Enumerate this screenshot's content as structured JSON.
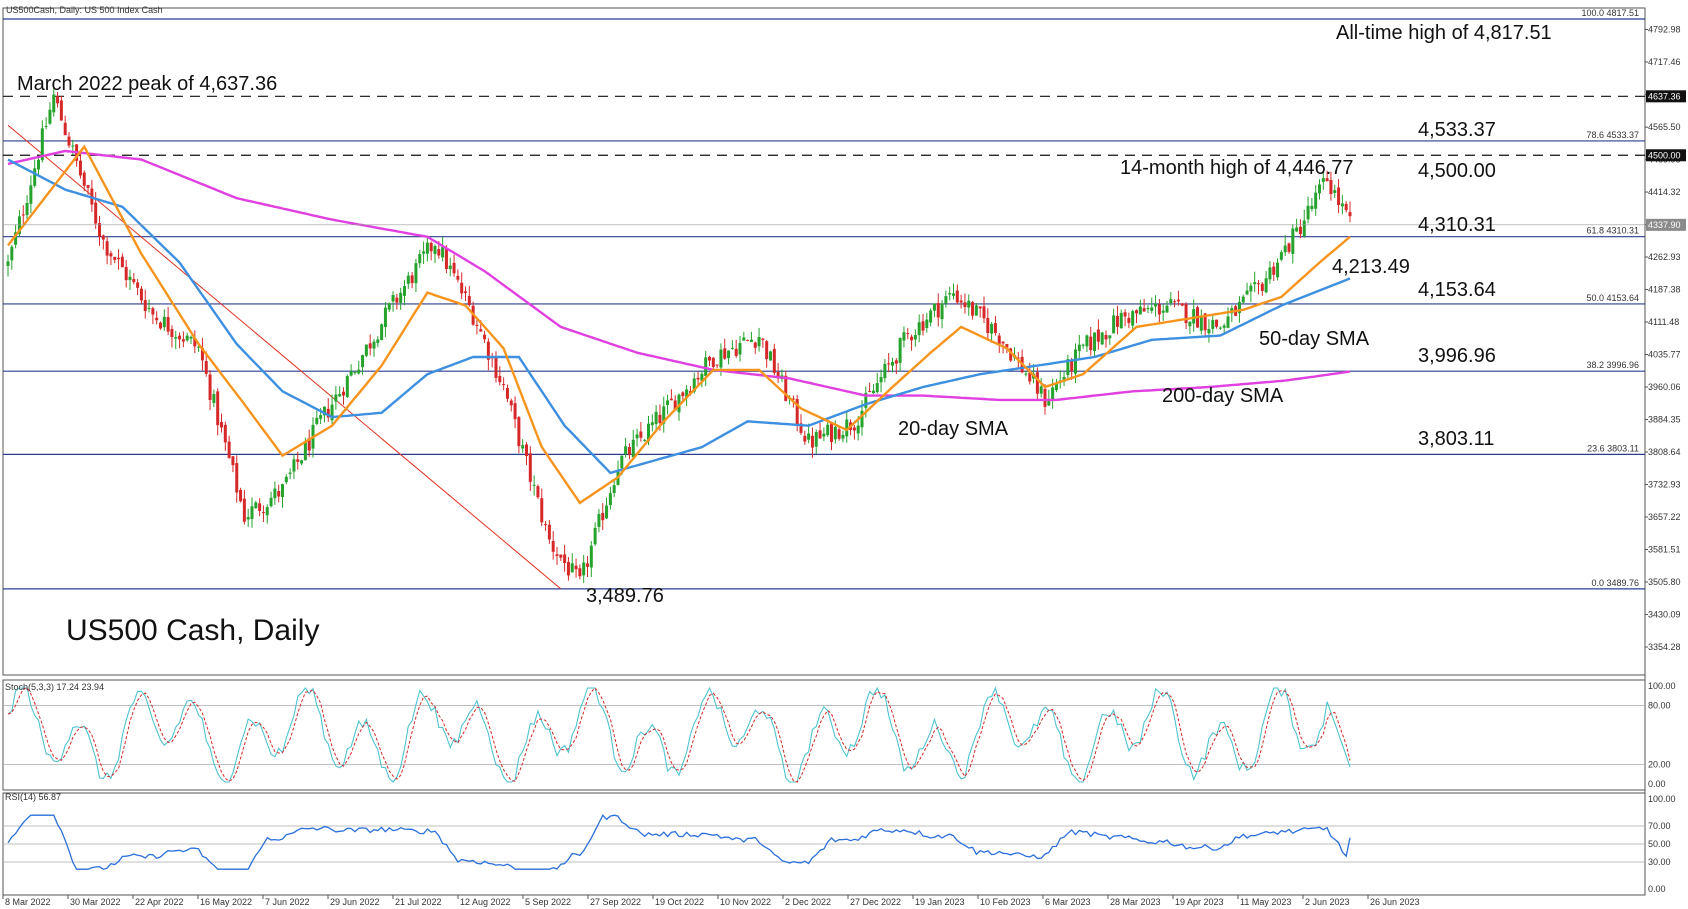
{
  "header": {
    "symbol_line": "US500Cash, Daily:  US 500 Index Cash"
  },
  "chart_data": {
    "type": "candlestick",
    "title": "US500 Cash, Daily",
    "price_axis": {
      "ylim": [
        3354.28,
        4817.51
      ],
      "ticks": [
        4792.98,
        4717.46,
        4641.94,
        4565.5,
        4489.98,
        4414.32,
        4338.4,
        4262.93,
        4187.38,
        4111.48,
        4035.77,
        3960.06,
        3884.35,
        3808.64,
        3732.93,
        3657.22,
        3581.51,
        3505.8,
        3430.09,
        3354.28
      ],
      "tick_labels": [
        "4792.98",
        "4717.46",
        "4641.94",
        "4565.50",
        "4489.98",
        "4414.32",
        "4338.40",
        "4262.93",
        "4187.38",
        "4111.48",
        "4035.77",
        "3960.06",
        "3884.35",
        "3808.64",
        "3732.93",
        "3657.22",
        "3581.51",
        "3505.80",
        "3430.09",
        "3354.28"
      ],
      "current_price": 4337.9,
      "current_price_label": "4337.90",
      "highlight_labels": [
        {
          "value": 4637.36,
          "label": "4637.36"
        },
        {
          "value": 4500.0,
          "label": "4500.00"
        }
      ]
    },
    "x_axis": {
      "labels": [
        "8 Mar 2022",
        "30 Mar 2022",
        "22 Apr 2022",
        "16 May 2022",
        "7 Jun 2022",
        "29 Jun 2022",
        "21 Jul 2022",
        "12 Aug 2022",
        "5 Sep 2022",
        "27 Sep 2022",
        "19 Oct 2022",
        "10 Nov 2022",
        "2 Dec 2022",
        "27 Dec 2022",
        "19 Jan 2023",
        "10 Feb 2023",
        "6 Mar 2023",
        "28 Mar 2023",
        "19 Apr 2023",
        "11 May 2023",
        "2 Jun 2023",
        "26 Jun 2023"
      ]
    },
    "fibonacci_levels": [
      {
        "ratio": "100.0",
        "value": 4817.51,
        "label": "100.0  4817.51"
      },
      {
        "ratio": "78.6",
        "value": 4533.37,
        "label": "78.6  4533.37"
      },
      {
        "ratio": "61.8",
        "value": 4310.31,
        "label": "61.8  4310.31"
      },
      {
        "ratio": "50.0",
        "value": 4153.64,
        "label": "50.0  4153.64"
      },
      {
        "ratio": "38.2",
        "value": 3996.96,
        "label": "38.2  3996.96"
      },
      {
        "ratio": "23.6",
        "value": 3803.11,
        "label": "23.6  3803.11"
      },
      {
        "ratio": "0.0",
        "value": 3489.76,
        "label": "0.0  3489.76"
      }
    ],
    "dashed_levels": [
      4637.36,
      4500.0
    ],
    "key_points": [
      [
        0,
        4245
      ],
      [
        12,
        4637
      ],
      [
        25,
        4300
      ],
      [
        38,
        4130
      ],
      [
        50,
        4050
      ],
      [
        62,
        3660
      ],
      [
        72,
        3720
      ],
      [
        82,
        3880
      ],
      [
        92,
        4020
      ],
      [
        100,
        4140
      ],
      [
        112,
        4300
      ],
      [
        122,
        4130
      ],
      [
        130,
        3960
      ],
      [
        142,
        3600
      ],
      [
        150,
        3500
      ],
      [
        160,
        3780
      ],
      [
        172,
        3900
      ],
      [
        185,
        4030
      ],
      [
        197,
        4080
      ],
      [
        210,
        3830
      ],
      [
        222,
        3880
      ],
      [
        236,
        4080
      ],
      [
        248,
        4180
      ],
      [
        260,
        4080
      ],
      [
        272,
        3930
      ],
      [
        282,
        4050
      ],
      [
        292,
        4120
      ],
      [
        304,
        4150
      ],
      [
        318,
        4100
      ],
      [
        328,
        4190
      ],
      [
        338,
        4320
      ],
      [
        346,
        4446
      ],
      [
        352,
        4338
      ]
    ],
    "sma_20": [
      [
        0,
        4290
      ],
      [
        20,
        4520
      ],
      [
        35,
        4270
      ],
      [
        50,
        4060
      ],
      [
        62,
        3920
      ],
      [
        72,
        3800
      ],
      [
        85,
        3870
      ],
      [
        98,
        4010
      ],
      [
        110,
        4180
      ],
      [
        120,
        4150
      ],
      [
        130,
        4050
      ],
      [
        140,
        3820
      ],
      [
        150,
        3690
      ],
      [
        160,
        3750
      ],
      [
        172,
        3880
      ],
      [
        185,
        4000
      ],
      [
        197,
        4000
      ],
      [
        208,
        3910
      ],
      [
        220,
        3860
      ],
      [
        232,
        3960
      ],
      [
        242,
        4040
      ],
      [
        250,
        4100
      ],
      [
        262,
        4050
      ],
      [
        272,
        3960
      ],
      [
        282,
        3990
      ],
      [
        296,
        4100
      ],
      [
        310,
        4120
      ],
      [
        324,
        4140
      ],
      [
        334,
        4170
      ],
      [
        344,
        4250
      ],
      [
        352,
        4310
      ]
    ],
    "sma_50": [
      [
        0,
        4490
      ],
      [
        15,
        4420
      ],
      [
        30,
        4380
      ],
      [
        45,
        4250
      ],
      [
        60,
        4060
      ],
      [
        72,
        3950
      ],
      [
        85,
        3890
      ],
      [
        98,
        3900
      ],
      [
        110,
        3990
      ],
      [
        122,
        4030
      ],
      [
        134,
        4030
      ],
      [
        146,
        3870
      ],
      [
        158,
        3760
      ],
      [
        170,
        3790
      ],
      [
        182,
        3820
      ],
      [
        194,
        3880
      ],
      [
        210,
        3870
      ],
      [
        225,
        3920
      ],
      [
        240,
        3960
      ],
      [
        255,
        3990
      ],
      [
        270,
        4010
      ],
      [
        285,
        4030
      ],
      [
        300,
        4070
      ],
      [
        318,
        4080
      ],
      [
        334,
        4150
      ],
      [
        352,
        4213
      ]
    ],
    "sma_200": [
      [
        0,
        4480
      ],
      [
        15,
        4510
      ],
      [
        35,
        4490
      ],
      [
        60,
        4400
      ],
      [
        85,
        4350
      ],
      [
        110,
        4310
      ],
      [
        125,
        4230
      ],
      [
        145,
        4100
      ],
      [
        165,
        4040
      ],
      [
        185,
        4000
      ],
      [
        205,
        3980
      ],
      [
        225,
        3940
      ],
      [
        240,
        3940
      ],
      [
        260,
        3930
      ],
      [
        275,
        3930
      ],
      [
        295,
        3950
      ],
      [
        315,
        3960
      ],
      [
        335,
        3975
      ],
      [
        352,
        3996
      ]
    ],
    "trendline": {
      "from": [
        0,
        4570
      ],
      "to": [
        145,
        3489.76
      ]
    },
    "annotations": {
      "ath": "All-time high of 4,817.51",
      "march_peak": "March 2022 peak of 4,637.36",
      "level_4533": "4,533.37",
      "high_14m": "14-month high of 4,446.77",
      "level_4500": "4,500.00",
      "level_4310": "4,310.31",
      "sma_4213": "4,213.49",
      "level_4153": "4,153.64",
      "sma50_label": "50-day SMA",
      "level_3996": "3,996.96",
      "sma200_label": "200-day SMA",
      "sma20_label": "20-day SMA",
      "level_3803": "3,803.11",
      "low": "3,489.76",
      "chart_name": "US500 Cash, Daily"
    },
    "stochastic": {
      "label": "Stoch(5,3,3) 17.24 23.94",
      "ylim": [
        0,
        100
      ],
      "ticks": [
        100,
        80,
        20,
        0
      ],
      "tick_labels": [
        "100.00",
        "80.00",
        "20.00",
        "0.00"
      ],
      "k": 17.24,
      "d": 23.94
    },
    "rsi": {
      "label": "RSI(14) 56.87",
      "ylim": [
        0,
        100
      ],
      "ticks": [
        100,
        70,
        50,
        30,
        0
      ],
      "tick_labels": [
        "100.00",
        "70.00",
        "50.00",
        "30.00",
        "0.00"
      ],
      "value": 56.87
    },
    "colors": {
      "bull": "#26a32c",
      "bear": "#d62828",
      "sma_20": "#f7941d",
      "sma_50": "#3d8fe0",
      "sma_200": "#e040e0",
      "fib_line": "#2b3f8f",
      "trendline": "#e03020",
      "stoch_k": "#4fc3d0",
      "stoch_d": "#d62828",
      "rsi": "#2a6fdb"
    }
  }
}
